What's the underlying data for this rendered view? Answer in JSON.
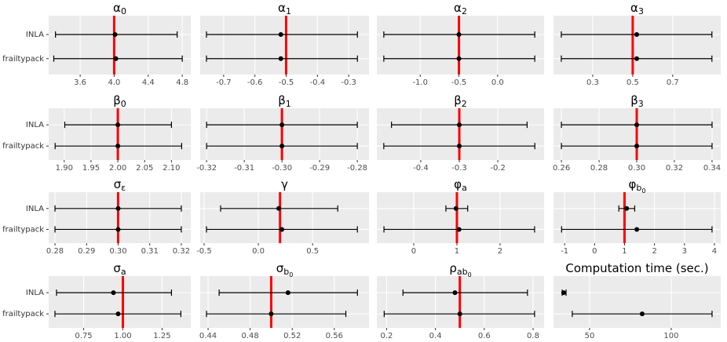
{
  "chart_data": {
    "type": "interval",
    "categories": [
      "INLA",
      "frailtypack"
    ],
    "panels": [
      {
        "title": "α",
        "subscript": "0",
        "xlim": [
          3.23,
          4.9
        ],
        "xticks": [
          3.6,
          {
            "value": 4,
            "label": "4.0"
          },
          4.4,
          4.8
        ],
        "reference": 4,
        "lower": [
          3.31,
          3.29
        ],
        "values": [
          4.01,
          4.02
        ],
        "upper": [
          4.74,
          4.8
        ]
      },
      {
        "title": "α",
        "subscript": "1",
        "xlim": [
          -0.775,
          -0.235
        ],
        "xticks": [
          -0.7,
          -0.6,
          -0.5,
          -0.4,
          -0.3
        ],
        "reference": -0.5,
        "lower": [
          -0.755,
          -0.755
        ],
        "values": [
          -0.517,
          -0.517
        ],
        "upper": [
          -0.272,
          -0.272
        ]
      },
      {
        "title": "α",
        "subscript": "2",
        "xlim": [
          -1.56,
          0.6
        ],
        "xticks": [
          {
            "value": -1,
            "label": "-1.0"
          },
          -0.5,
          {
            "value": 0,
            "label": "0.0"
          }
        ],
        "reference": -0.5,
        "lower": [
          -1.47,
          -1.47
        ],
        "values": [
          -0.5,
          -0.5
        ],
        "upper": [
          0.48,
          0.48
        ]
      },
      {
        "title": "α",
        "subscript": "3",
        "xlim": [
          0.104,
          0.94
        ],
        "xticks": [
          0.3,
          0.5,
          0.7
        ],
        "reference": 0.5,
        "lower": [
          0.143,
          0.143
        ],
        "values": [
          0.52,
          0.52
        ],
        "upper": [
          0.896,
          0.896
        ]
      },
      {
        "title": "β",
        "subscript": "0",
        "xlim": [
          1.871,
          2.136
        ],
        "xticks": [
          {
            "value": 1.9,
            "label": "1.90"
          },
          1.95,
          {
            "value": 2,
            "label": "2.00"
          },
          2.05,
          {
            "value": 2.1,
            "label": "2.10"
          }
        ],
        "reference": 2,
        "lower": [
          1.901,
          1.883
        ],
        "values": [
          2,
          2
        ],
        "upper": [
          2.1,
          2.119
        ]
      },
      {
        "title": "β",
        "subscript": "1",
        "xlim": [
          -0.3217,
          -0.2769
        ],
        "xticks": [
          -0.32,
          -0.31,
          {
            "value": -0.3,
            "label": "-0.30"
          },
          -0.29,
          -0.28
        ],
        "reference": -0.3,
        "lower": [
          -0.32,
          -0.32
        ],
        "values": [
          -0.3,
          -0.3
        ],
        "upper": [
          -0.28,
          -0.28
        ]
      },
      {
        "title": "β",
        "subscript": "2",
        "xlim": [
          -0.514,
          -0.08
        ],
        "xticks": [
          -0.4,
          -0.3,
          -0.2
        ],
        "reference": -0.3,
        "lower": [
          -0.476,
          -0.496
        ],
        "values": [
          -0.3,
          -0.3
        ],
        "upper": [
          -0.124,
          -0.104
        ]
      },
      {
        "title": "β",
        "subscript": "3",
        "xlim": [
          0.2558,
          0.3446
        ],
        "xticks": [
          0.26,
          0.28,
          {
            "value": 0.3,
            "label": "0.30"
          },
          0.32,
          0.34
        ],
        "reference": 0.3,
        "lower": [
          0.26,
          0.26
        ],
        "values": [
          0.3,
          0.3
        ],
        "upper": [
          0.34,
          0.34
        ]
      },
      {
        "title": "σ",
        "subscript": "ε",
        "xlim": [
          0.278,
          0.323
        ],
        "xticks": [
          0.28,
          0.29,
          {
            "value": 0.3,
            "label": "0.30"
          },
          0.31,
          0.32
        ],
        "reference": 0.3,
        "lower": [
          0.28,
          0.28
        ],
        "values": [
          0.3,
          0.3
        ],
        "upper": [
          0.32,
          0.32
        ]
      },
      {
        "title": "γ",
        "xlim": [
          -0.536,
          1.02
        ],
        "xticks": [
          -0.5,
          {
            "value": 0,
            "label": "0.0"
          },
          0.5
        ],
        "reference": 0.2,
        "lower": [
          -0.348,
          -0.478
        ],
        "values": [
          0.188,
          0.217
        ],
        "upper": [
          0.732,
          0.913
        ]
      },
      {
        "title": "φ",
        "subscript": "a",
        "xlim": [
          -0.855,
          3.02
        ],
        "xticks": [
          0,
          1,
          2
        ],
        "reference": 1,
        "lower": [
          0.745,
          -0.69
        ],
        "values": [
          0.98,
          1.05
        ],
        "upper": [
          1.25,
          2.8
        ]
      },
      {
        "title": "φ",
        "subscript": "b",
        "subsubscript": "0",
        "xlim": [
          -1.37,
          4.21
        ],
        "xticks": [
          -1,
          0,
          1,
          2,
          3,
          4
        ],
        "reference": 1,
        "lower": [
          0.81,
          -1.1
        ],
        "values": [
          1.07,
          1.41
        ],
        "upper": [
          1.34,
          3.92
        ]
      },
      {
        "title": "σ",
        "subscript": "a",
        "xlim": [
          0.527,
          1.433
        ],
        "xticks": [
          0.75,
          {
            "value": 1,
            "label": "1.00"
          },
          1.25
        ],
        "reference": 1,
        "lower": [
          0.577,
          0.567
        ],
        "values": [
          0.94,
          0.97
        ],
        "upper": [
          1.31,
          1.37
        ]
      },
      {
        "title": "σ",
        "subscript": "b",
        "subsubscript": "0",
        "xlim": [
          0.4325,
          0.593
        ],
        "xticks": [
          0.44,
          0.48,
          0.52,
          0.56
        ],
        "reference": 0.5,
        "lower": [
          0.4505,
          0.4385
        ],
        "values": [
          0.516,
          0.5
        ],
        "upper": [
          0.582,
          0.571
        ]
      },
      {
        "title": "ρ",
        "subscript": "ab",
        "subsubscript": "0",
        "xlim": [
          0.16,
          0.845
        ],
        "xticks": [
          0.2,
          0.4,
          0.6,
          0.8
        ],
        "reference": 0.5,
        "lower": [
          0.267,
          0.19
        ],
        "values": [
          0.48,
          0.5
        ],
        "upper": [
          0.777,
          0.806
        ]
      },
      {
        "title": "Computation time (sec.)",
        "xlim": [
          27.9,
          130.3
        ],
        "xticks": [
          50,
          100
        ],
        "lower": [
          33.2,
          39.4
        ],
        "values": [
          34.1,
          82.2
        ],
        "upper": [
          35.6,
          125
        ]
      }
    ]
  }
}
